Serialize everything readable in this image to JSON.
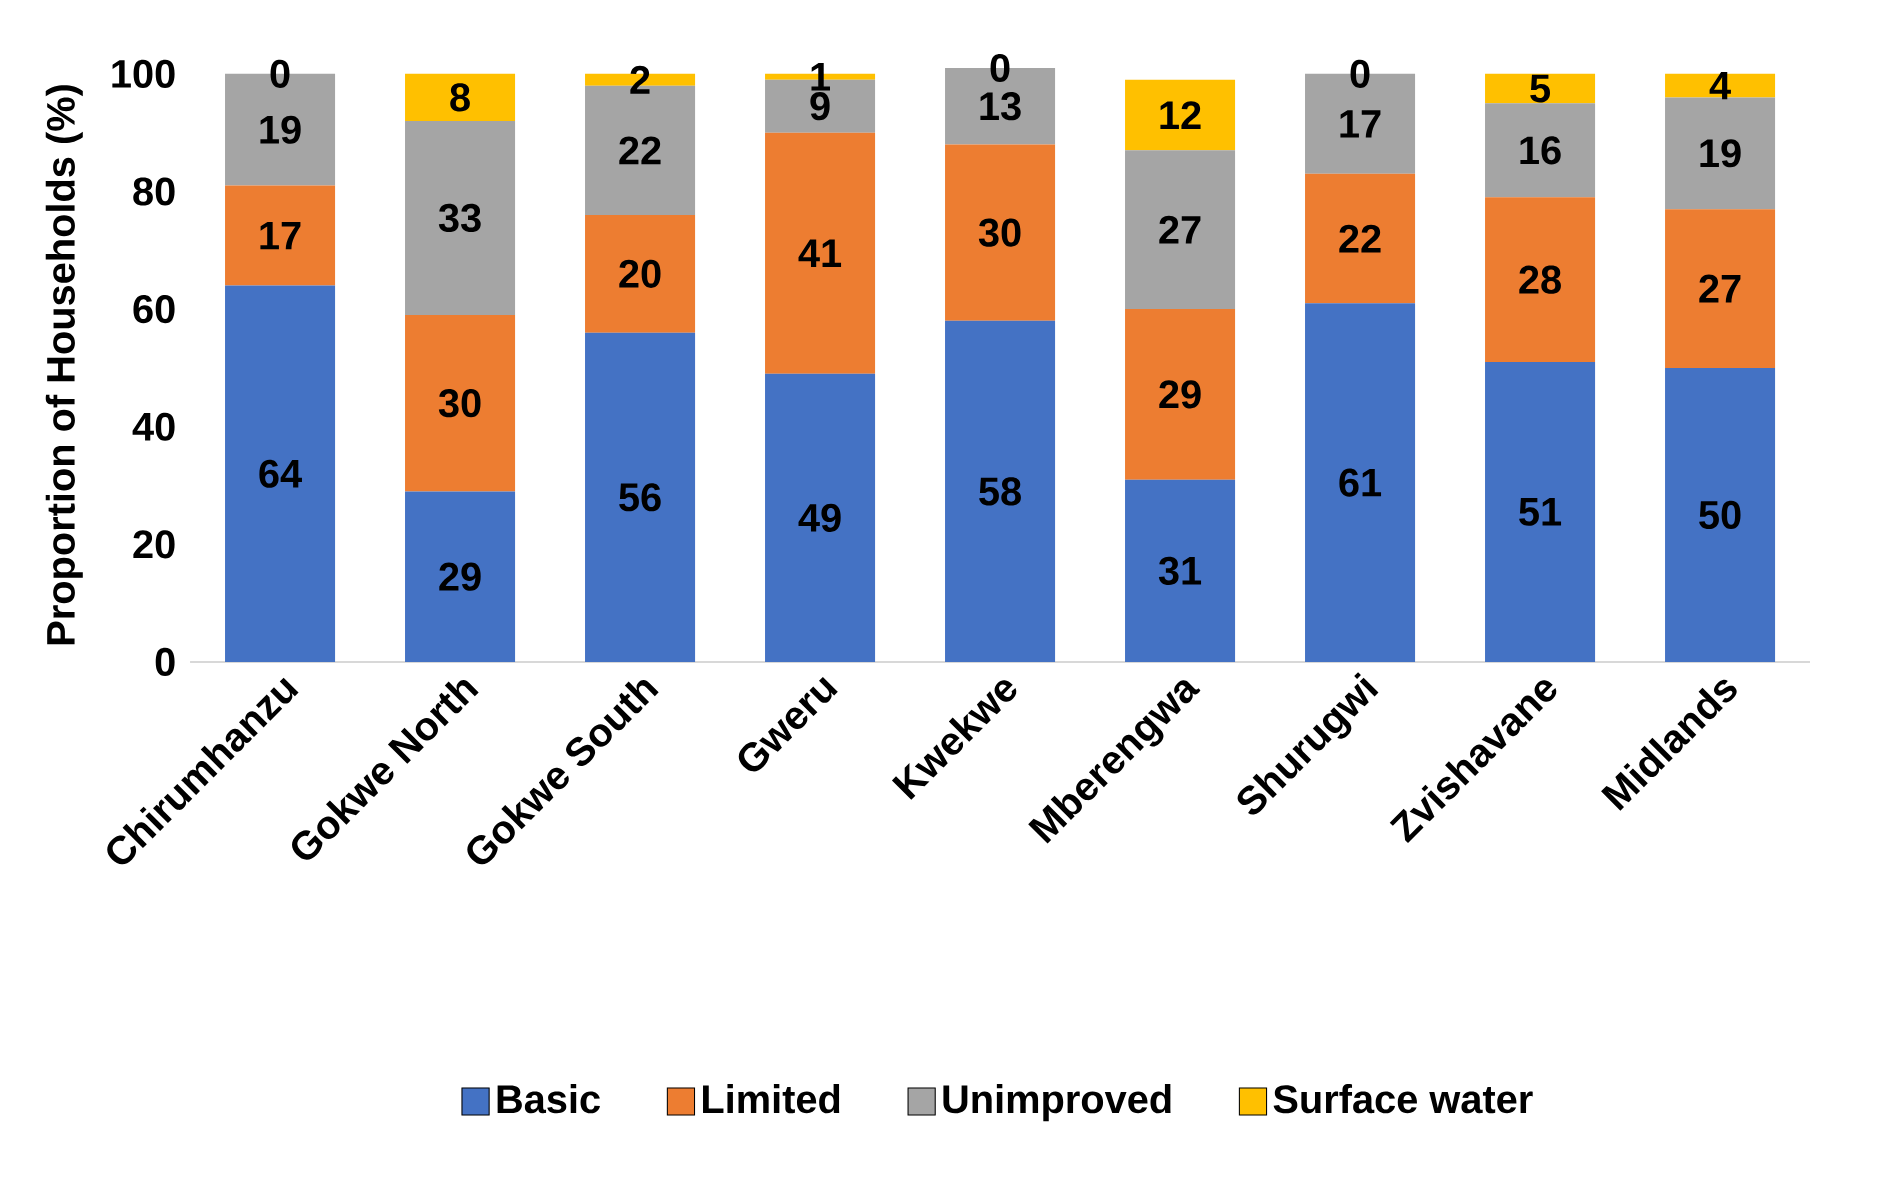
{
  "chart_data": {
    "type": "bar",
    "stacked": true,
    "ylabel": "Proportion of Households (%)",
    "categories": [
      "Chirumhanzu",
      "Gokwe North",
      "Gokwe South",
      "Gweru",
      "Kwekwe",
      "Mberengwa",
      "Shurugwi",
      "Zvishavane",
      "Midlands"
    ],
    "series": [
      {
        "name": "Basic",
        "color": "#4472c4",
        "values": [
          64,
          29,
          56,
          49,
          58,
          31,
          61,
          51,
          50
        ]
      },
      {
        "name": "Limited",
        "color": "#ed7d31",
        "values": [
          17,
          30,
          20,
          41,
          30,
          29,
          22,
          28,
          27
        ]
      },
      {
        "name": "Unimproved",
        "color": "#a5a5a5",
        "values": [
          19,
          33,
          22,
          9,
          13,
          27,
          17,
          16,
          19
        ]
      },
      {
        "name": "Surface water",
        "color": "#ffc000",
        "values": [
          0,
          8,
          2,
          1,
          0,
          12,
          0,
          5,
          4
        ]
      }
    ],
    "ylim": [
      0,
      101
    ],
    "yticks": [
      0,
      20,
      40,
      60,
      80,
      100
    ],
    "data_labels": true,
    "legend": "bottom",
    "grid": false
  }
}
